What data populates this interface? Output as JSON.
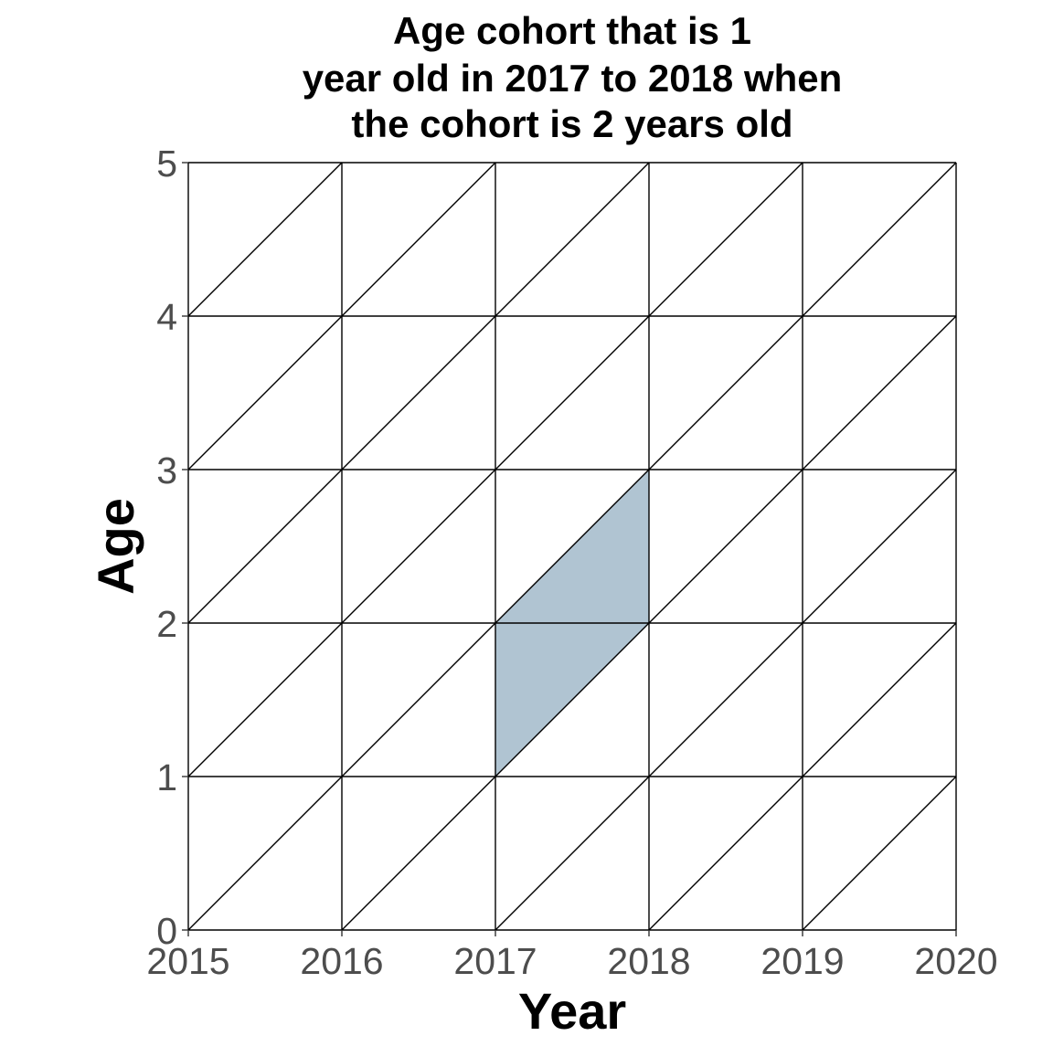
{
  "chart_data": {
    "type": "area",
    "title_lines": [
      "Age cohort that is 1",
      "year old in 2017 to 2018 when",
      "the cohort is 2 years old"
    ],
    "xlabel": "Year",
    "ylabel": "Age",
    "x_ticks": [
      2015,
      2016,
      2017,
      2018,
      2019,
      2020
    ],
    "y_ticks": [
      0,
      1,
      2,
      3,
      4,
      5
    ],
    "xlim": [
      2015,
      2020
    ],
    "ylim": [
      0,
      5
    ],
    "grid": "Lexis grid: vertical lines at each year, horizontal lines at each age, diagonal cohort lines",
    "highlight": {
      "name": "",
      "color": "#b0c4d2",
      "polygon": [
        [
          2017,
          1
        ],
        [
          2018,
          2
        ],
        [
          2018,
          3
        ],
        [
          2017,
          2
        ]
      ]
    }
  }
}
